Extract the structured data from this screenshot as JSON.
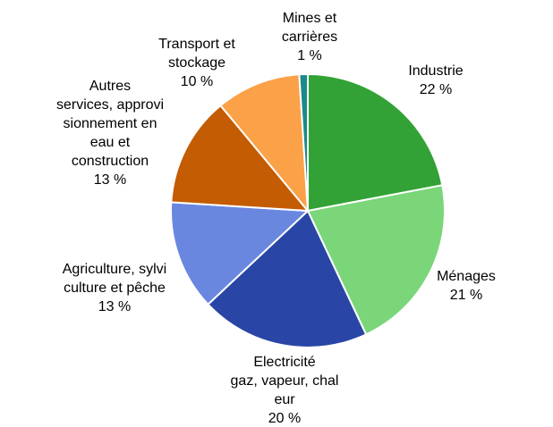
{
  "chart_data": {
    "type": "pie",
    "title": "",
    "slices": [
      {
        "label_lines": [
          "Industrie"
        ],
        "percent_text": "22 %",
        "value": 22,
        "color": "#33a236"
      },
      {
        "label_lines": [
          "Ménages"
        ],
        "percent_text": "21 %",
        "value": 21,
        "color": "#7ad679"
      },
      {
        "label_lines": [
          "Electricité",
          "gaz, vapeur, chal",
          "eur"
        ],
        "percent_text": "20 %",
        "value": 20,
        "color": "#2946a6"
      },
      {
        "label_lines": [
          "Agriculture, sylvi",
          "culture et pêche"
        ],
        "percent_text": "13 %",
        "value": 13,
        "color": "#6a87e0"
      },
      {
        "label_lines": [
          "Autres",
          "services, approvi",
          "sionnement en",
          "eau et",
          "construction"
        ],
        "percent_text": "13 %",
        "value": 13,
        "color": "#c45c04"
      },
      {
        "label_lines": [
          "Transport et",
          "stockage"
        ],
        "percent_text": "10 %",
        "value": 10,
        "color": "#fba148"
      },
      {
        "label_lines": [
          "Mines et",
          "carrières"
        ],
        "percent_text": "1 %",
        "value": 1,
        "color": "#1a8a8a"
      }
    ]
  }
}
